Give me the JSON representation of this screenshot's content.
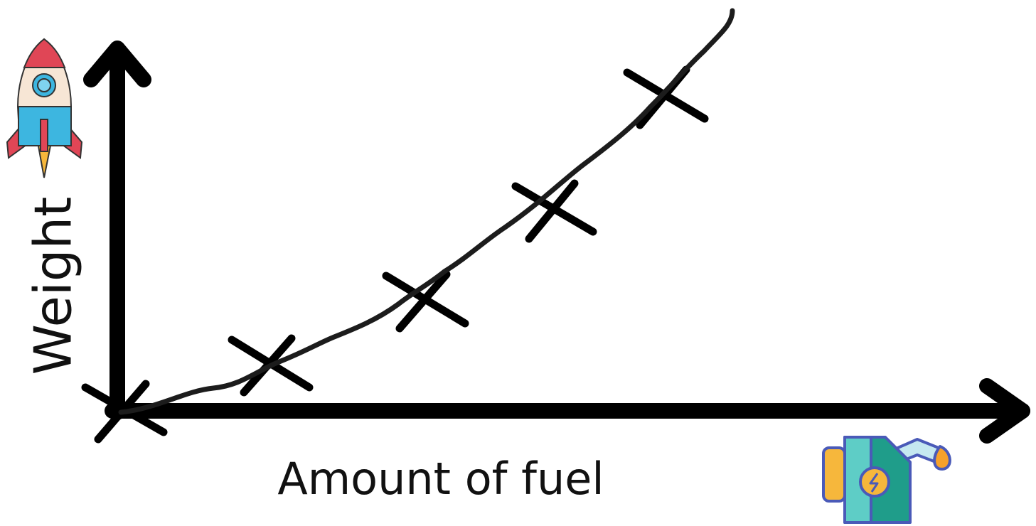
{
  "y_axis_label": "Weight",
  "x_axis_label": "Amount of fuel"
}
